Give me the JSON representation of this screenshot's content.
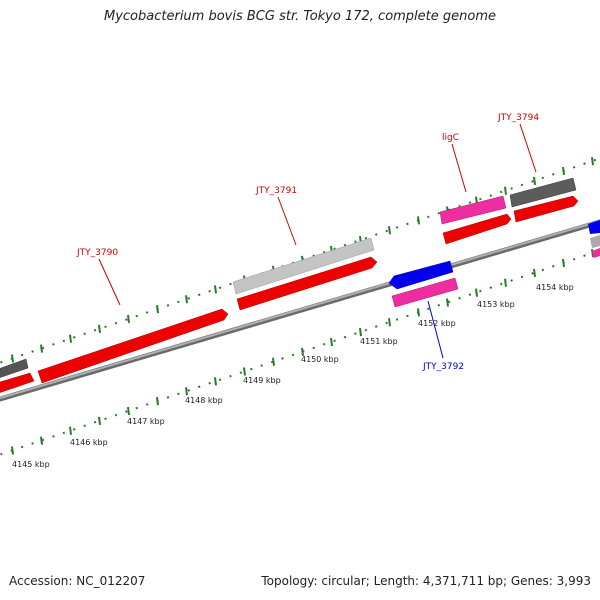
{
  "title": "Mycobacterium bovis BCG str. Tokyo 172, complete genome",
  "footer": {
    "accession": "Accession: NC_012207",
    "summary": "Topology: circular; Length: 4,371,711 bp; Genes: 3,993"
  },
  "colors": {
    "cds_forward": "#ff0000",
    "cds_reverse": "#0000ee",
    "gene_magenta": "#ee2ea0",
    "gene_gray_light": "#c0c0c0",
    "gene_gray_dark": "#606060",
    "backbone": "#808080",
    "tick": "#2a7a2a"
  },
  "ticks": {
    "labels": [
      "4145 kbp",
      "4146 kbp",
      "4147 kbp",
      "4148 kbp",
      "4149 kbp",
      "4150 kbp",
      "4151 kbp",
      "4152 kbp",
      "4153 kbp",
      "4154 kbp"
    ]
  },
  "gene_labels": [
    {
      "text": "JTY_3790",
      "color": "#cc0000"
    },
    {
      "text": "JTY_3791",
      "color": "#cc0000"
    },
    {
      "text": "ligC",
      "color": "#cc0000"
    },
    {
      "text": "JTY_3794",
      "color": "#cc0000"
    },
    {
      "text": "JTY_3792",
      "color": "#0000cc"
    }
  ]
}
